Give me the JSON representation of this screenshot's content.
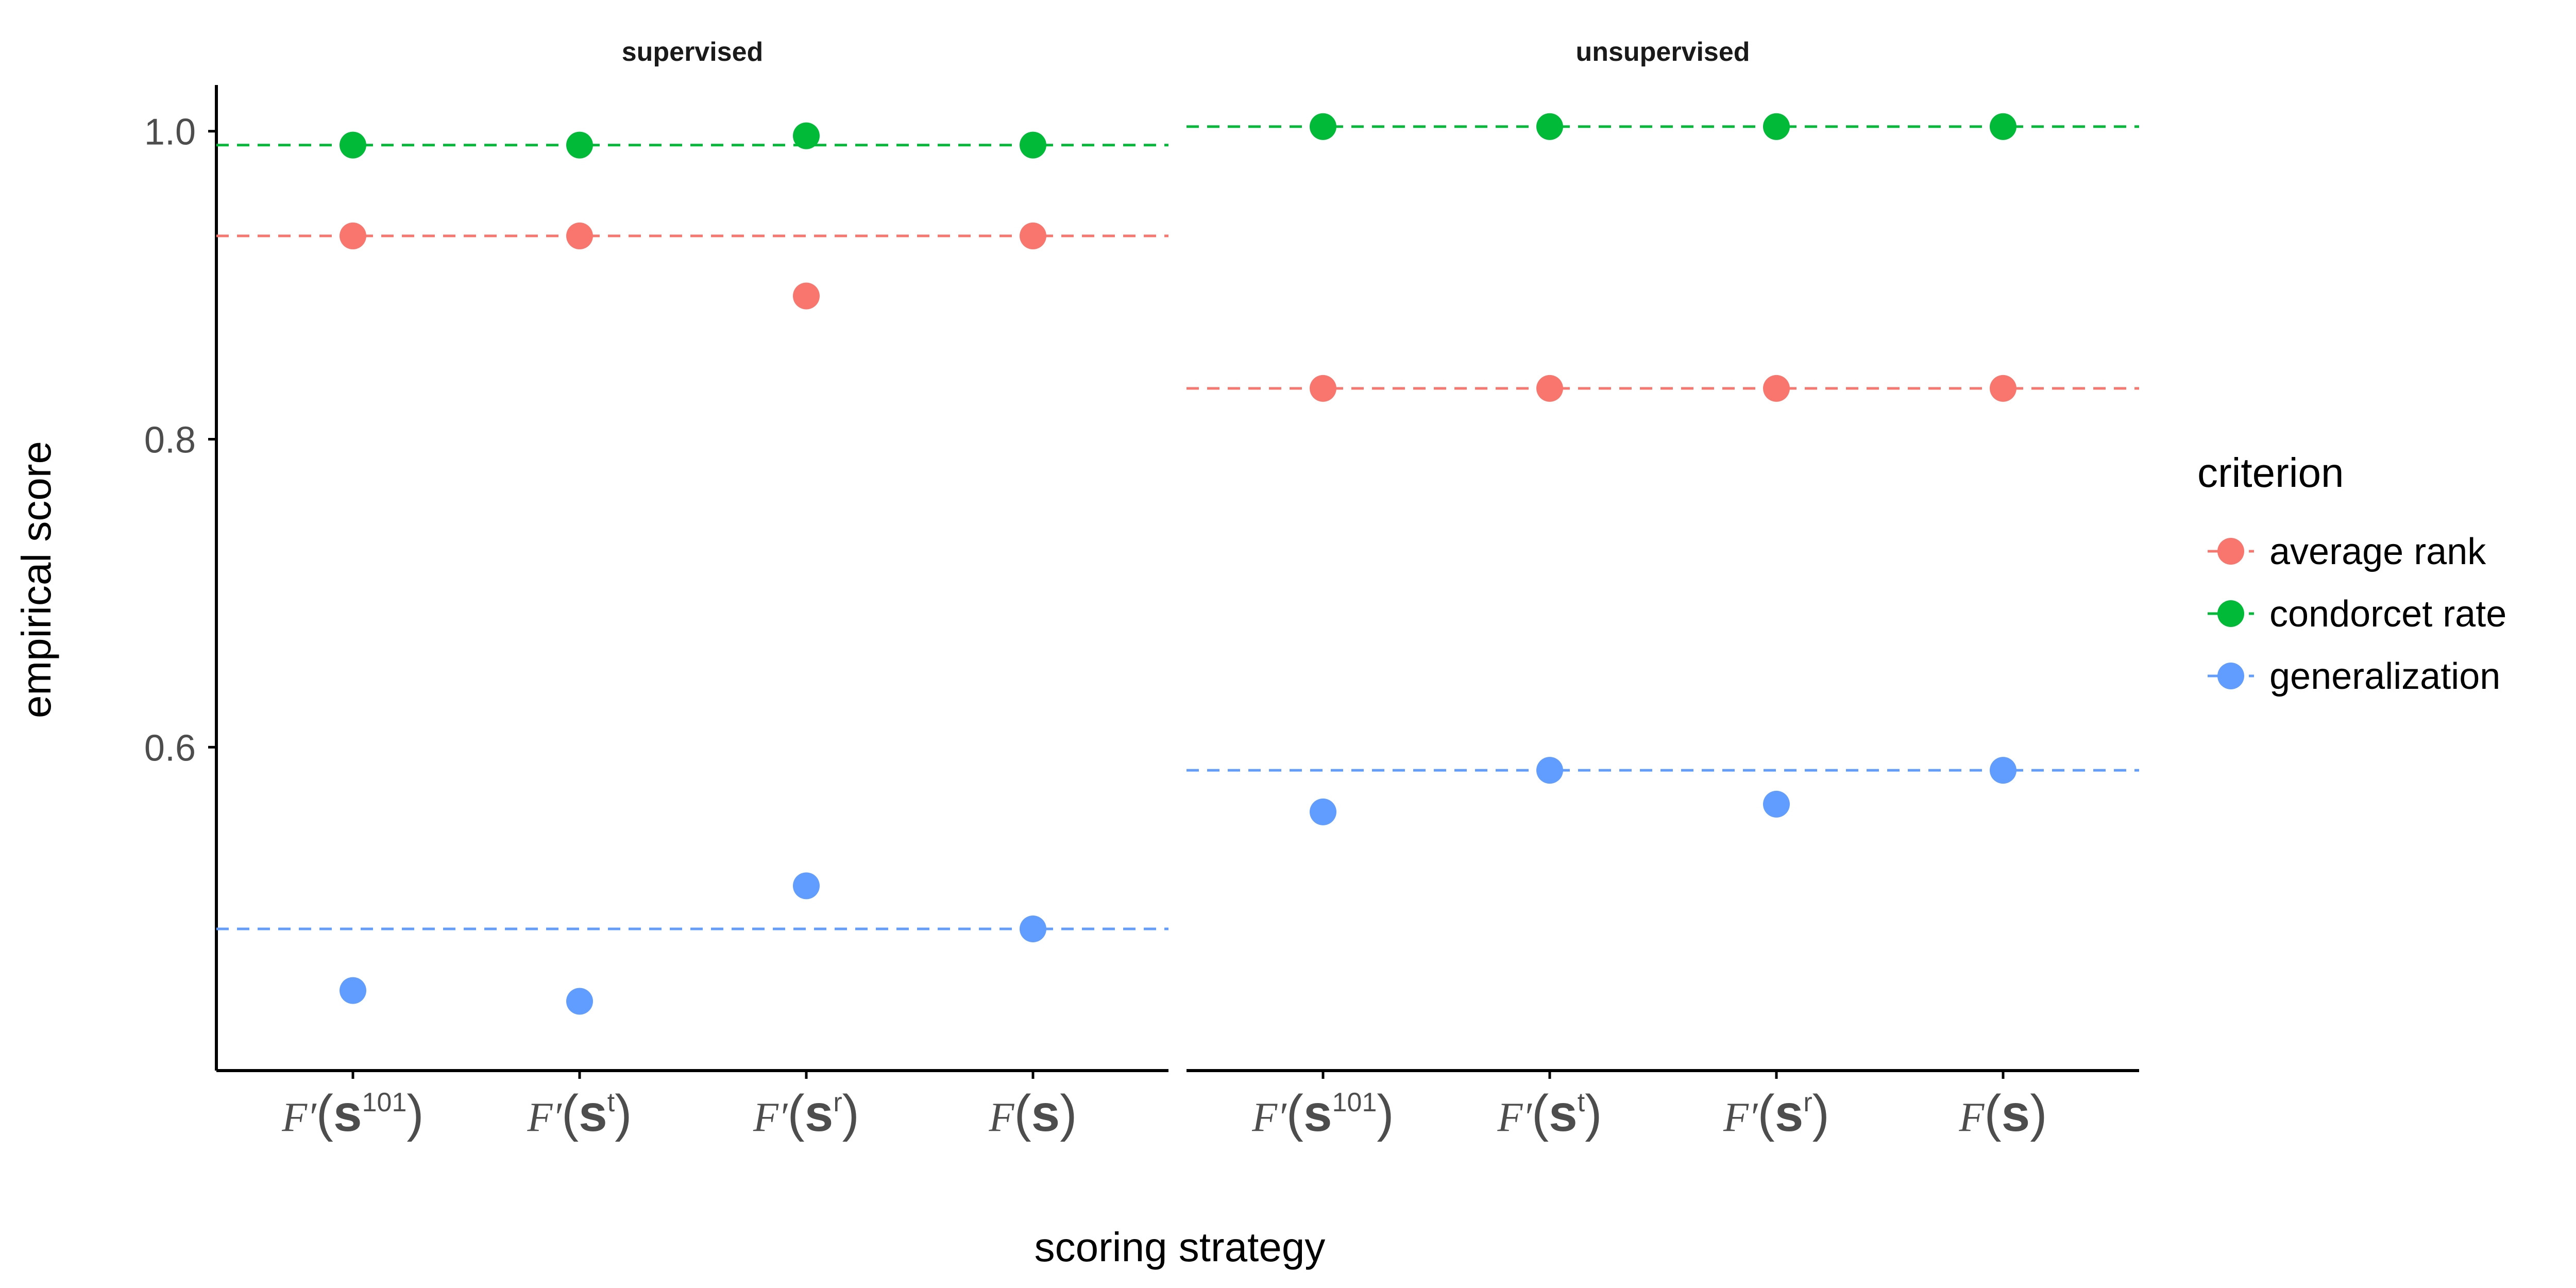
{
  "colors": {
    "average rank": "#F8766D",
    "condorcet rate": "#00BA38",
    "generalization": "#619CFF",
    "axis": "#000000",
    "tick_text": "#4d4d4d"
  },
  "chart_data": {
    "type": "scatter",
    "xlabel": "scoring strategy",
    "ylabel": "empirical score",
    "ylim": [
      0.39,
      1.03
    ],
    "yticks": [
      0.6,
      0.8,
      1.0
    ],
    "ytick_labels": [
      "0.6",
      "0.8",
      "1.0"
    ],
    "categories": [
      {
        "italic": "F′",
        "bold": "s",
        "sup": "101"
      },
      {
        "italic": "F′",
        "bold": "s",
        "sup": "t"
      },
      {
        "italic": "F′",
        "bold": "s",
        "sup": "r"
      },
      {
        "italic": "F",
        "bold": "s",
        "sup": ""
      }
    ],
    "legend": {
      "title": "criterion",
      "entries": [
        "average rank",
        "condorcet rate",
        "generalization"
      ]
    },
    "panels": [
      {
        "strip": "supervised",
        "series": [
          {
            "name": "average rank",
            "values": [
              0.932,
              0.932,
              0.893,
              0.932
            ],
            "reference": 0.932
          },
          {
            "name": "condorcet rate",
            "values": [
              0.991,
              0.991,
              0.997,
              0.991
            ],
            "reference": 0.991
          },
          {
            "name": "generalization",
            "values": [
              0.442,
              0.435,
              0.51,
              0.482
            ],
            "reference": 0.482
          }
        ]
      },
      {
        "strip": "unsupervised",
        "series": [
          {
            "name": "average rank",
            "values": [
              0.833,
              0.833,
              0.833,
              0.833
            ],
            "reference": 0.833
          },
          {
            "name": "condorcet rate",
            "values": [
              1.003,
              1.003,
              1.003,
              1.003
            ],
            "reference": 1.003
          },
          {
            "name": "generalization",
            "values": [
              0.558,
              0.585,
              0.563,
              0.585
            ],
            "reference": 0.585
          }
        ]
      }
    ]
  }
}
